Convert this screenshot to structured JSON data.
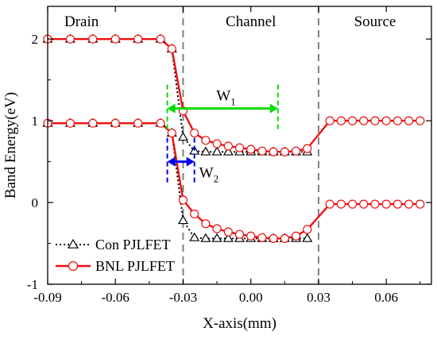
{
  "chart_data": {
    "type": "line",
    "xlabel": "X-axis(mm)",
    "ylabel": "Band Energy(eV)",
    "xlim": [
      -0.09,
      0.08
    ],
    "ylim": [
      -1,
      2.4
    ],
    "x_ticks": [
      -0.09,
      -0.06,
      -0.03,
      0.0,
      0.03,
      0.06
    ],
    "x_tick_labels": [
      "-0.09",
      "-0.06",
      "-0.03",
      "0.00",
      "0.03",
      "0.06"
    ],
    "y_ticks": [
      -1,
      0,
      1,
      2
    ],
    "y_tick_labels": [
      "-1",
      "0",
      "1",
      "2"
    ],
    "regions": [
      {
        "label": "Drain",
        "x": -0.075
      },
      {
        "label": "Channel",
        "x": 0.0
      },
      {
        "label": "Source",
        "x": 0.055
      }
    ],
    "boundaries": [
      -0.03,
      0.03
    ],
    "annotations": {
      "w1": {
        "label": "W",
        "sub": "1",
        "color": "#00dd00",
        "x_from": -0.037,
        "x_to": 0.012,
        "y": 1.15
      },
      "w2": {
        "label": "W",
        "sub": "2",
        "color": "#0000ee",
        "x_from": -0.037,
        "x_to": -0.025,
        "y": 0.5
      }
    },
    "series": [
      {
        "name": "Con PJLFET",
        "color": "#000000",
        "marker": "triangle",
        "line": "dotted",
        "markers_conduction": {
          "x": [
            -0.09,
            -0.08,
            -0.07,
            -0.06,
            -0.05,
            -0.04,
            -0.035,
            -0.03,
            -0.025,
            -0.02,
            -0.015,
            -0.01,
            -0.005,
            0.0,
            0.005,
            0.01,
            0.015,
            0.02,
            0.025
          ],
          "y": [
            2.0,
            2.0,
            2.0,
            2.0,
            2.0,
            2.0,
            1.88,
            0.8,
            0.63,
            0.62,
            0.62,
            0.62,
            0.62,
            0.62,
            0.62,
            0.62,
            0.62,
            0.62,
            0.62
          ]
        },
        "markers_valence": {
          "x": [
            -0.09,
            -0.08,
            -0.07,
            -0.06,
            -0.05,
            -0.04,
            -0.035,
            -0.03,
            -0.025,
            -0.02,
            -0.015,
            -0.01,
            -0.005,
            0.0,
            0.005,
            0.01,
            0.015,
            0.02,
            0.025
          ],
          "y": [
            0.97,
            0.97,
            0.97,
            0.97,
            0.97,
            0.97,
            0.85,
            -0.22,
            -0.43,
            -0.44,
            -0.44,
            -0.44,
            -0.44,
            -0.44,
            -0.44,
            -0.44,
            -0.44,
            -0.44,
            -0.44
          ]
        }
      },
      {
        "name": "BNL PJLFET",
        "color": "#ee1111",
        "marker": "circle",
        "line": "solid",
        "markers_conduction": {
          "x": [
            -0.09,
            -0.08,
            -0.07,
            -0.06,
            -0.05,
            -0.04,
            -0.035,
            -0.03,
            -0.025,
            -0.02,
            -0.015,
            -0.01,
            -0.005,
            0.0,
            0.005,
            0.01,
            0.015,
            0.02,
            0.025,
            0.035,
            0.04,
            0.045,
            0.05,
            0.055,
            0.06,
            0.065,
            0.07,
            0.075
          ],
          "y": [
            2.0,
            2.0,
            2.0,
            2.0,
            2.0,
            2.0,
            1.88,
            1.12,
            0.85,
            0.76,
            0.72,
            0.69,
            0.67,
            0.65,
            0.63,
            0.62,
            0.62,
            0.63,
            0.66,
            1.0,
            1.0,
            1.0,
            1.0,
            1.0,
            1.0,
            1.0,
            1.0,
            1.0
          ]
        },
        "markers_valence": {
          "x": [
            -0.09,
            -0.08,
            -0.07,
            -0.06,
            -0.05,
            -0.04,
            -0.035,
            -0.03,
            -0.025,
            -0.02,
            -0.015,
            -0.01,
            -0.005,
            0.0,
            0.005,
            0.01,
            0.015,
            0.02,
            0.025,
            0.035,
            0.04,
            0.045,
            0.05,
            0.055,
            0.06,
            0.065,
            0.07,
            0.075
          ],
          "y": [
            0.97,
            0.97,
            0.97,
            0.97,
            0.97,
            0.97,
            0.85,
            0.03,
            -0.14,
            -0.26,
            -0.32,
            -0.36,
            -0.39,
            -0.41,
            -0.43,
            -0.44,
            -0.44,
            -0.41,
            -0.33,
            -0.02,
            -0.02,
            -0.02,
            -0.02,
            -0.02,
            -0.02,
            -0.02,
            -0.02,
            -0.02
          ]
        }
      }
    ]
  }
}
